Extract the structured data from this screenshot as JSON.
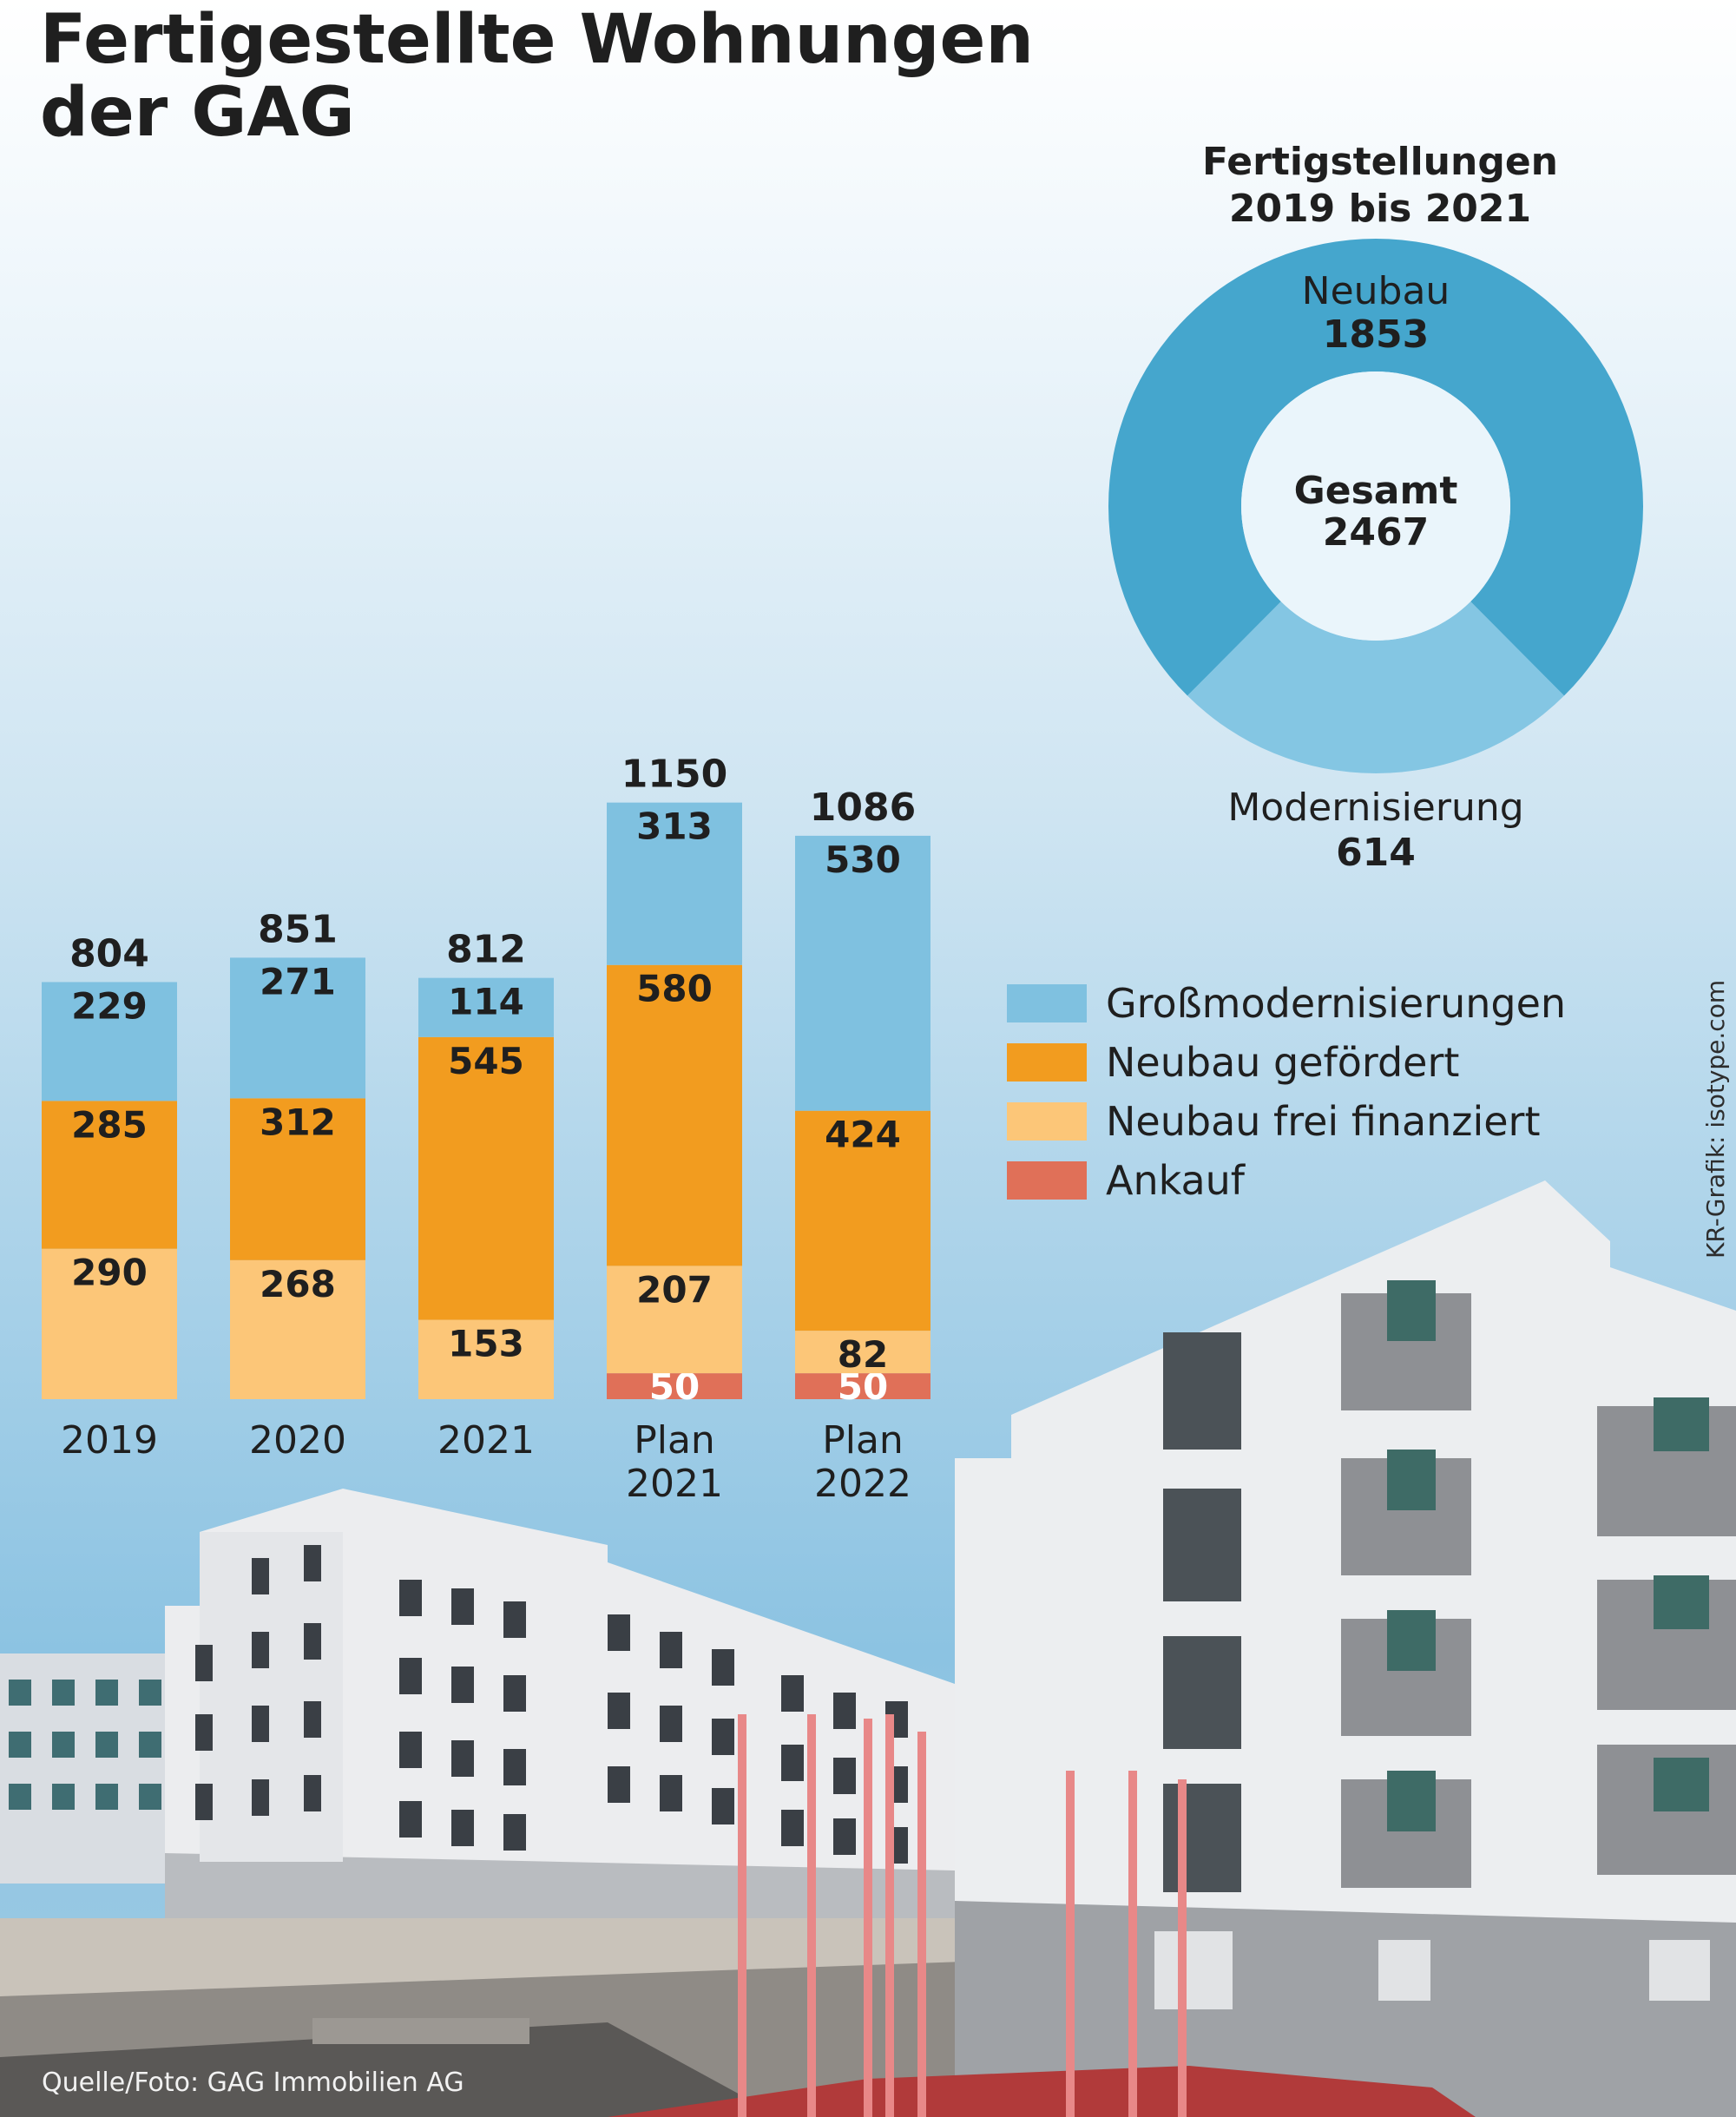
{
  "title": {
    "line1": "Fertigestellte Wohnungen",
    "line2": "der GAG"
  },
  "chart_data": [
    {
      "type": "bar",
      "stacked": true,
      "title": "Fertigestellte Wohnungen der GAG",
      "categories": [
        [
          "2019"
        ],
        [
          "2020"
        ],
        [
          "2021"
        ],
        [
          "Plan",
          "2021"
        ],
        [
          "Plan",
          "2022"
        ]
      ],
      "totals": [
        804,
        851,
        812,
        1150,
        1086
      ],
      "series": [
        {
          "name": "Ankauf",
          "color": "#e07058",
          "values": [
            0,
            0,
            0,
            50,
            50
          ]
        },
        {
          "name": "Neubau frei finanziert",
          "color": "#fcc678",
          "values": [
            290,
            268,
            153,
            207,
            82
          ]
        },
        {
          "name": "Neubau gefördert",
          "color": "#f29c1f",
          "values": [
            285,
            312,
            545,
            580,
            424
          ]
        },
        {
          "name": "Großmodernisierungen",
          "color": "#7fc1e0",
          "values": [
            229,
            271,
            114,
            313,
            530
          ]
        }
      ],
      "legend_order": [
        "Großmodernisierungen",
        "Neubau gefördert",
        "Neubau frei finanziert",
        "Ankauf"
      ],
      "legend_position": "right",
      "grid": false
    },
    {
      "type": "pie",
      "donut": true,
      "title": "Fertigstellungen 2019 bis 2021",
      "title_lines": [
        "Fertigstellungen",
        "2019 bis 2021"
      ],
      "center": {
        "label": "Gesamt",
        "value": 2467
      },
      "slices": [
        {
          "name": "Neubau",
          "value": 1853,
          "color": "#45a6cd"
        },
        {
          "name": "Modernisierung",
          "value": 614,
          "color": "#84c6e3"
        }
      ]
    }
  ],
  "credit": "KR-Grafik: isotype.com",
  "source": "Quelle/Foto: GAG Immobilien AG",
  "colors": {
    "background_top": "#ffffff",
    "sky": "#8cc3e2",
    "text": "#1f1f1f"
  }
}
